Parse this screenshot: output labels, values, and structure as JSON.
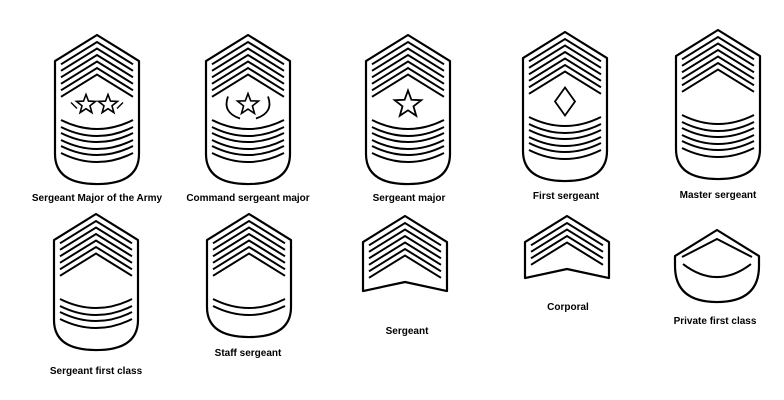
{
  "figure": {
    "ink_color": "#000000",
    "paper_color": "#ffffff",
    "ranks": [
      {
        "label": "Sergeant Major of the Army",
        "chevrons": 3,
        "rockers": 3,
        "device": "two-stars"
      },
      {
        "label": "Command sergeant major",
        "chevrons": 3,
        "rockers": 3,
        "device": "star-wreath"
      },
      {
        "label": "Sergeant major",
        "chevrons": 3,
        "rockers": 3,
        "device": "star"
      },
      {
        "label": "First sergeant",
        "chevrons": 3,
        "rockers": 3,
        "device": "lozenge"
      },
      {
        "label": "Master sergeant",
        "chevrons": 3,
        "rockers": 3,
        "device": "none"
      },
      {
        "label": "Sergeant first class",
        "chevrons": 3,
        "rockers": 2,
        "device": "none"
      },
      {
        "label": "Staff sergeant",
        "chevrons": 3,
        "rockers": 1,
        "device": "none"
      },
      {
        "label": "Sergeant",
        "chevrons": 3,
        "rockers": 0,
        "device": "none"
      },
      {
        "label": "Corporal",
        "chevrons": 2,
        "rockers": 0,
        "device": "none"
      },
      {
        "label": "Private first class",
        "chevrons": 1,
        "rockers": 1,
        "device": "none"
      }
    ]
  }
}
